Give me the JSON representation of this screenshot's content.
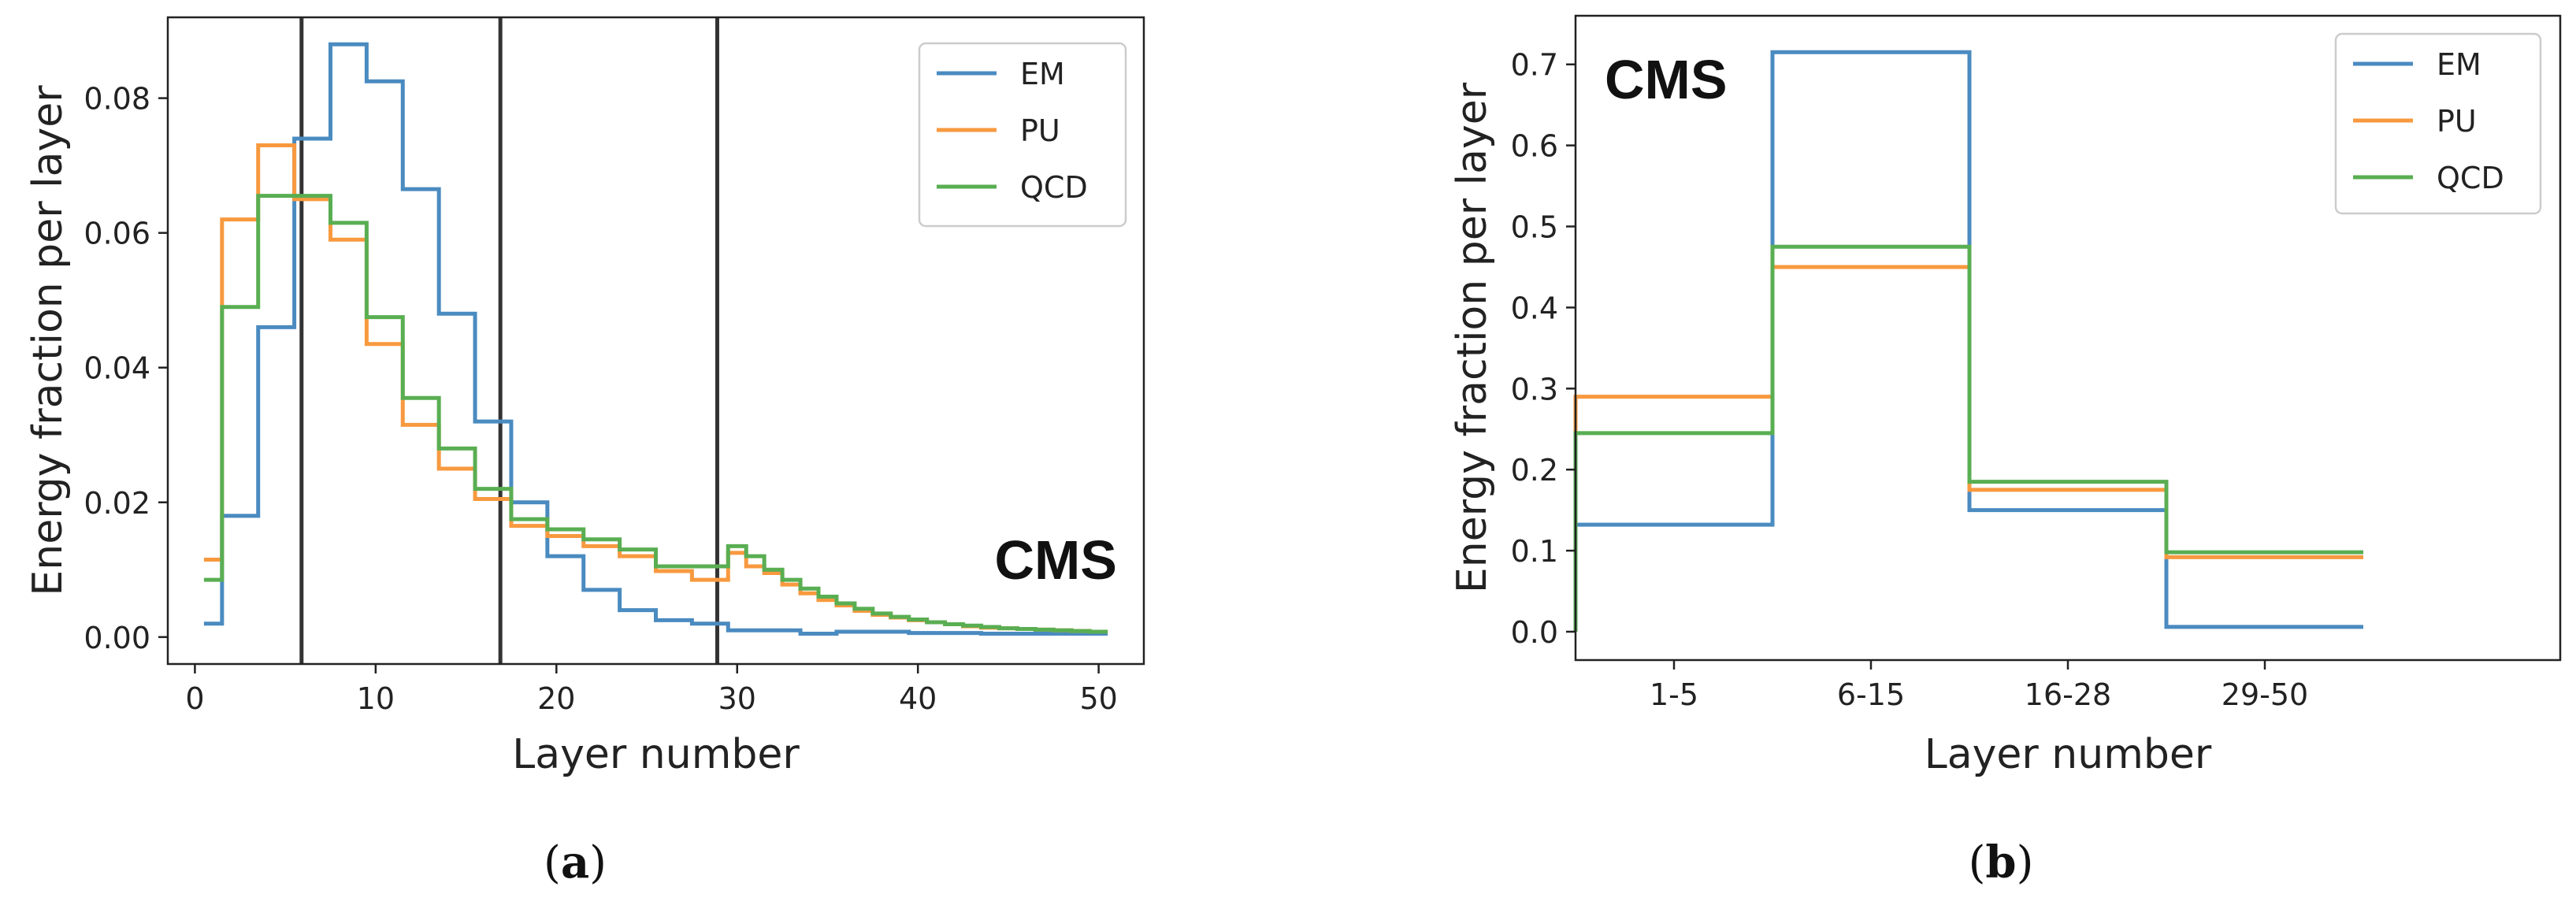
{
  "colors": {
    "EM": "#4a8bc0",
    "PU": "#f8993f",
    "QCD": "#59ae52",
    "vline": "#333333",
    "axis": "#222222"
  },
  "captions": {
    "a_open": "(",
    "a_letter": "a",
    "a_close": ")",
    "b_open": "(",
    "b_letter": "b",
    "b_close": ")"
  },
  "chart_data": [
    {
      "id": "a",
      "type": "line",
      "step": true,
      "title": "",
      "xlabel": "Layer number",
      "ylabel": "Energy fraction per layer",
      "watermark": "CMS",
      "xlim": [
        -1.5,
        52.5
      ],
      "ylim": [
        -0.004,
        0.092
      ],
      "xticks": [
        0,
        10,
        20,
        30,
        40,
        50
      ],
      "xtick_labels": [
        "0",
        "10",
        "20",
        "30",
        "40",
        "50"
      ],
      "yticks": [
        0.0,
        0.02,
        0.04,
        0.06,
        0.08
      ],
      "ytick_labels": [
        "0.00",
        "0.02",
        "0.04",
        "0.06",
        "0.08"
      ],
      "vlines": [
        5.9,
        16.9,
        28.9
      ],
      "legend": {
        "location": "top-right",
        "entries": [
          "EM",
          "PU",
          "QCD"
        ]
      },
      "x": [
        1,
        2,
        3,
        4,
        5,
        6,
        7,
        8,
        9,
        10,
        11,
        12,
        13,
        14,
        15,
        16,
        17,
        18,
        19,
        20,
        21,
        22,
        23,
        24,
        25,
        26,
        27,
        28,
        29,
        30,
        31,
        32,
        33,
        34,
        35,
        36,
        37,
        38,
        39,
        40,
        41,
        42,
        43,
        44,
        45,
        46,
        47,
        48,
        49,
        50
      ],
      "series": [
        {
          "name": "EM",
          "values": [
            0.002,
            0.018,
            0.018,
            0.046,
            0.046,
            0.074,
            0.074,
            0.088,
            0.088,
            0.0825,
            0.0825,
            0.0665,
            0.0665,
            0.048,
            0.048,
            0.032,
            0.032,
            0.02,
            0.02,
            0.012,
            0.012,
            0.007,
            0.007,
            0.004,
            0.004,
            0.0025,
            0.0025,
            0.002,
            0.002,
            0.001,
            0.001,
            0.001,
            0.001,
            0.0005,
            0.0005,
            0.0008,
            0.0008,
            0.0008,
            0.0008,
            0.0006,
            0.0006,
            0.0006,
            0.0006,
            0.0005,
            0.0005,
            0.0005,
            0.0005,
            0.0005,
            0.0005,
            0.0005
          ]
        },
        {
          "name": "PU",
          "values": [
            0.0115,
            0.062,
            0.062,
            0.073,
            0.073,
            0.065,
            0.065,
            0.059,
            0.059,
            0.0435,
            0.0435,
            0.0315,
            0.0315,
            0.025,
            0.025,
            0.0205,
            0.0205,
            0.0165,
            0.0165,
            0.015,
            0.015,
            0.0135,
            0.0135,
            0.012,
            0.012,
            0.0098,
            0.0098,
            0.0085,
            0.0085,
            0.0125,
            0.0105,
            0.0095,
            0.0078,
            0.0065,
            0.0055,
            0.0047,
            0.0039,
            0.0033,
            0.0029,
            0.0025,
            0.0022,
            0.0019,
            0.0016,
            0.0014,
            0.0013,
            0.0012,
            0.0011,
            0.001,
            0.0009,
            0.0008
          ]
        },
        {
          "name": "QCD",
          "values": [
            0.0085,
            0.049,
            0.049,
            0.0655,
            0.0655,
            0.0655,
            0.0655,
            0.0615,
            0.0615,
            0.0475,
            0.0475,
            0.0355,
            0.0355,
            0.028,
            0.028,
            0.022,
            0.022,
            0.0175,
            0.0175,
            0.016,
            0.016,
            0.0145,
            0.0145,
            0.013,
            0.013,
            0.0105,
            0.0105,
            0.0105,
            0.0105,
            0.0135,
            0.012,
            0.01,
            0.0085,
            0.0072,
            0.006,
            0.005,
            0.0042,
            0.0035,
            0.003,
            0.0026,
            0.0022,
            0.0019,
            0.0017,
            0.0015,
            0.0013,
            0.0012,
            0.0011,
            0.001,
            0.0009,
            0.0008
          ]
        }
      ]
    },
    {
      "id": "b",
      "type": "line",
      "step": true,
      "title": "",
      "xlabel": "Layer number",
      "ylabel": "Energy fraction per layer",
      "watermark": "CMS",
      "categories": [
        "1-5",
        "6-15",
        "16-28",
        "29-50"
      ],
      "xlim": [
        -0.5,
        4.5
      ],
      "ylim": [
        -0.035,
        0.76
      ],
      "yticks": [
        0.0,
        0.1,
        0.2,
        0.3,
        0.4,
        0.5,
        0.6,
        0.7
      ],
      "ytick_labels": [
        "0.0",
        "0.1",
        "0.2",
        "0.3",
        "0.4",
        "0.5",
        "0.6",
        "0.7"
      ],
      "legend": {
        "location": "top-right",
        "entries": [
          "EM",
          "PU",
          "QCD"
        ]
      },
      "series": [
        {
          "name": "EM",
          "values": [
            0.132,
            0.715,
            0.15,
            0.006
          ]
        },
        {
          "name": "PU",
          "values": [
            0.29,
            0.45,
            0.175,
            0.092
          ]
        },
        {
          "name": "QCD",
          "values": [
            0.245,
            0.475,
            0.185,
            0.098
          ]
        }
      ]
    }
  ]
}
